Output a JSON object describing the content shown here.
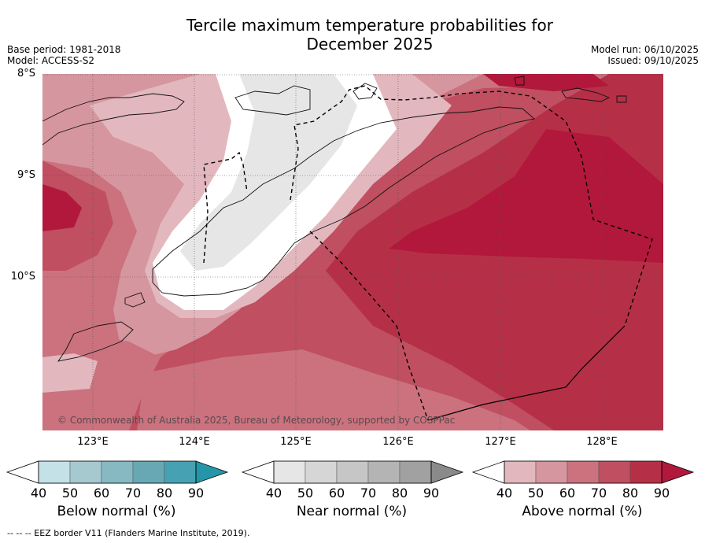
{
  "title": {
    "line1": "Tercile maximum temperature probabilities for",
    "line2": "December 2025"
  },
  "meta": {
    "base_period": "Base period: 1981-2018",
    "model": "Model: ACCESS-S2",
    "model_run": "Model run: 06/10/2025",
    "issued": "Issued: 09/10/2025"
  },
  "axes": {
    "lat_labels": [
      "8°S",
      "9°S",
      "10°S"
    ],
    "lon_labels": [
      "123°E",
      "124°E",
      "125°E",
      "126°E",
      "127°E",
      "128°E"
    ]
  },
  "copyright": "© Commonwealth of Australia 2025, Bureau of Meteorology, supported by COSPPac",
  "legends": [
    {
      "title": "Below normal (%)",
      "ticks": [
        "40",
        "50",
        "60",
        "70",
        "80",
        "90"
      ],
      "colors": [
        "#ffffff",
        "#c5e1e8",
        "#a6c9d0",
        "#87b9c3",
        "#68a8b5",
        "#46a2b2",
        "#2596a8"
      ]
    },
    {
      "title": "Near normal (%)",
      "ticks": [
        "40",
        "50",
        "60",
        "70",
        "80",
        "90"
      ],
      "colors": [
        "#ffffff",
        "#e6e6e6",
        "#d6d6d6",
        "#c6c6c6",
        "#b4b4b4",
        "#a1a1a1",
        "#8a8a8a"
      ]
    },
    {
      "title": "Above normal (%)",
      "ticks": [
        "40",
        "50",
        "60",
        "70",
        "80",
        "90"
      ],
      "colors": [
        "#ffffff",
        "#e2b8be",
        "#d6969f",
        "#cb727e",
        "#bf4f61",
        "#b53047",
        "#b2183b"
      ]
    }
  ],
  "map_colors": {
    "white": "#ffffff",
    "grey": "#e6e6e6",
    "ab40": "#e2b8be",
    "ab50": "#d6969f",
    "ab60": "#cb727e",
    "ab70": "#bf4f61",
    "ab80": "#b53047",
    "ab90": "#b2183b"
  },
  "footnote": "--  --  -- EEZ border V11 (Flanders Marine Institute, 2019)."
}
